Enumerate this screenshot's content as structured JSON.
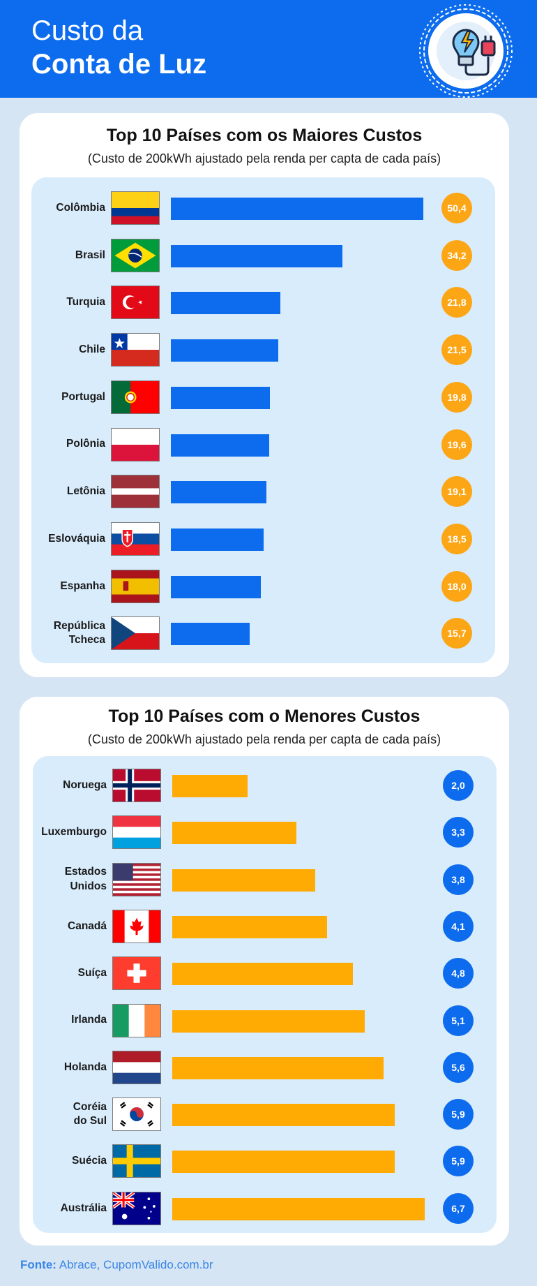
{
  "header": {
    "line1": "Custo da",
    "line2": "Conta de Luz"
  },
  "colors": {
    "header_bg": "#0c6ced",
    "page_bg": "#d6e5f3",
    "panel_bg": "#d9ecfc",
    "blue_bar": "#0c6ced",
    "orange_bar": "#ffab04"
  },
  "logo": {
    "icon": "lightbulb-plug-icon"
  },
  "chart_data": [
    {
      "type": "bar",
      "orientation": "horizontal",
      "title": "Top 10 Países com os Maiores Custos",
      "subtitle": "(Custo de 200kWh ajustado pela renda per capta de cada país)",
      "bar_color": "#0c6ced",
      "badge_color": "#fca616",
      "max_value": 50.4,
      "categories": [
        "Colômbia",
        "Brasil",
        "Turquia",
        "Chile",
        "Portugal",
        "Polônia",
        "Letônia",
        "Eslováquia",
        "Espanha",
        "República\nTcheca"
      ],
      "flags": [
        "colombia-flag-icon",
        "brazil-flag-icon",
        "turkey-flag-icon",
        "chile-flag-icon",
        "portugal-flag-icon",
        "poland-flag-icon",
        "latvia-flag-icon",
        "slovakia-flag-icon",
        "spain-flag-icon",
        "czech-flag-icon"
      ],
      "values": [
        50.4,
        34.2,
        21.8,
        21.5,
        19.8,
        19.6,
        19.1,
        18.5,
        18.0,
        15.7
      ],
      "labels": [
        "50,4",
        "34,2",
        "21,8",
        "21,5",
        "19,8",
        "19,6",
        "19,1",
        "18,5",
        "18,0",
        "15,7"
      ]
    },
    {
      "type": "bar",
      "orientation": "horizontal",
      "title": "Top 10 Países com o Menores Custos",
      "subtitle": "(Custo de 200kWh ajustado pela renda per capta de cada país)",
      "bar_color": "#ffab04",
      "badge_color": "#0c6ced",
      "max_value": 6.7,
      "categories": [
        "Noruega",
        "Luxemburgo",
        "Estados\nUnidos",
        "Canadá",
        "Suíça",
        "Irlanda",
        "Holanda",
        "Coréia\ndo Sul",
        "Suécia",
        "Austrália"
      ],
      "flags": [
        "norway-flag-icon",
        "luxembourg-flag-icon",
        "usa-flag-icon",
        "canada-flag-icon",
        "switzerland-flag-icon",
        "ireland-flag-icon",
        "netherlands-flag-icon",
        "south-korea-flag-icon",
        "sweden-flag-icon",
        "australia-flag-icon"
      ],
      "values": [
        2.0,
        3.3,
        3.8,
        4.1,
        4.8,
        5.1,
        5.6,
        5.9,
        5.9,
        6.7
      ],
      "labels": [
        "2,0",
        "3,3",
        "3,8",
        "4,1",
        "4,8",
        "5,1",
        "5,6",
        "5,9",
        "5,9",
        "6,7"
      ]
    }
  ],
  "footer": {
    "label": "Fonte:",
    "text": "Abrace, CupomValido.com.br"
  }
}
